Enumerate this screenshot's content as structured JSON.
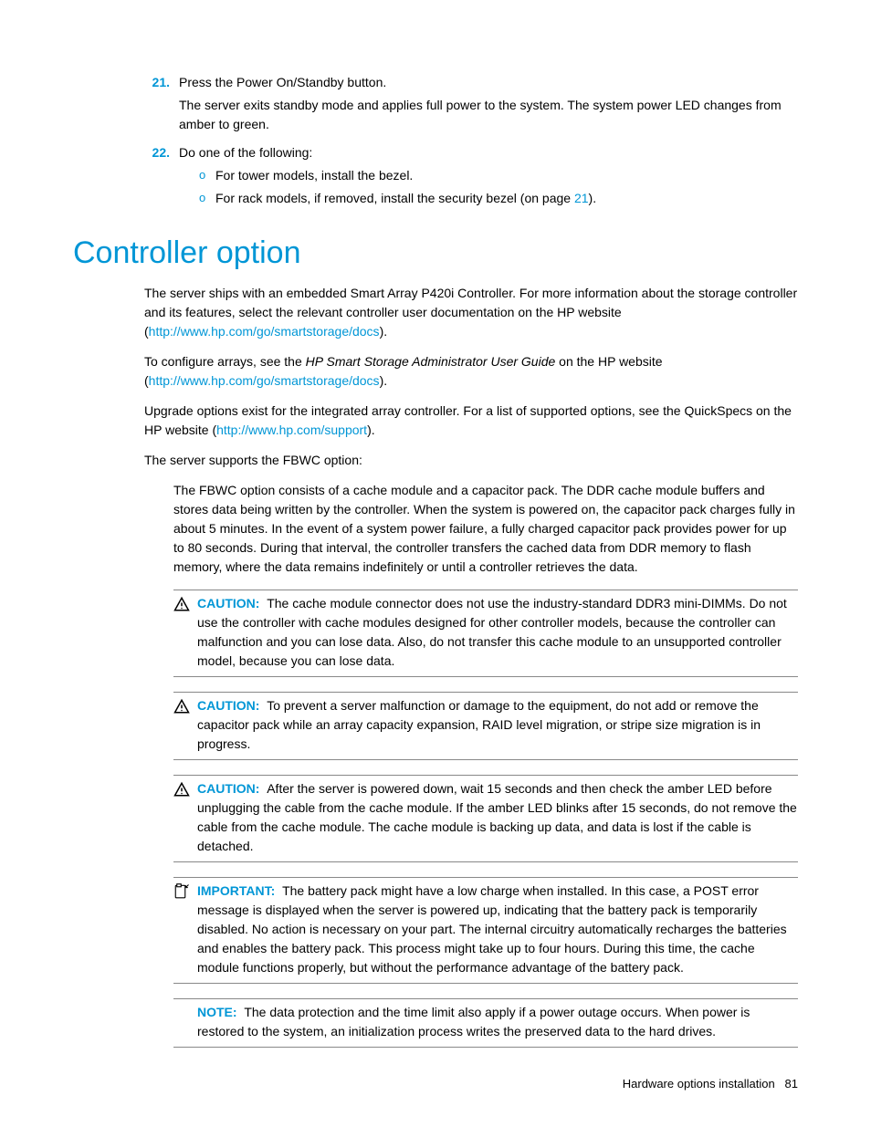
{
  "colors": {
    "accent": "#0096d6",
    "text": "#000000",
    "rule": "#888888",
    "background": "#ffffff"
  },
  "ordered_steps": [
    {
      "num": "21.",
      "lines": [
        "Press the Power On/Standby button.",
        "The server exits standby mode and applies full power to the system. The system power LED changes from amber to green."
      ]
    },
    {
      "num": "22.",
      "lines": [
        "Do one of the following:"
      ],
      "bullets": [
        {
          "text": "For tower models, install the bezel."
        },
        {
          "pre": "For rack models, if removed, install the security bezel (on page ",
          "link": "21",
          "post": ")."
        }
      ]
    }
  ],
  "heading": "Controller option",
  "para1": {
    "pre": "The server ships with an embedded Smart Array P420i Controller. For more information about the storage controller and its features, select the relevant controller user documentation on the HP website (",
    "link": "http://www.hp.com/go/smartstorage/docs",
    "post": ")."
  },
  "para2": {
    "pre1": "To configure arrays, see the ",
    "italic": "HP Smart Storage Administrator User Guide",
    "pre2": " on the HP website (",
    "link": "http://www.hp.com/go/smartstorage/docs",
    "post": ")."
  },
  "para3": {
    "pre": "Upgrade options exist for the integrated array controller. For a list of supported options, see the QuickSpecs on the HP website (",
    "link": "http://www.hp.com/support",
    "post": ")."
  },
  "para4": "The server supports the FBWC option:",
  "fbwc_detail": "The FBWC option consists of a cache module and a capacitor pack. The DDR cache module buffers and stores data being written by the controller. When the system is powered on, the capacitor pack charges fully in about 5 minutes. In the event of a system power failure, a fully charged capacitor pack provides power for up to 80 seconds. During that interval, the controller transfers the cached data from DDR memory to flash memory, where the data remains indefinitely or until a controller retrieves the data.",
  "admonitions": [
    {
      "icon": "caution",
      "label": "CAUTION:",
      "text": "The cache module connector does not use the industry-standard DDR3 mini-DIMMs. Do not use the controller with cache modules designed for other controller models, because the controller can malfunction and you can lose data. Also, do not transfer this cache module to an unsupported controller model, because you can lose data."
    },
    {
      "icon": "caution",
      "label": "CAUTION:",
      "text": "To prevent a server malfunction or damage to the equipment, do not add or remove the capacitor pack while an array capacity expansion, RAID level migration, or stripe size migration is in progress."
    },
    {
      "icon": "caution",
      "label": "CAUTION:",
      "text": "After the server is powered down, wait 15 seconds and then check the amber LED before unplugging the cable from the cache module. If the amber LED blinks after 15 seconds, do not remove the cable from the cache module. The cache module is backing up data, and data is lost if the cable is detached."
    },
    {
      "icon": "important",
      "label": "IMPORTANT:",
      "text": "The battery pack might have a low charge when installed. In this case, a POST error message is displayed when the server is powered up, indicating that the battery pack is temporarily disabled. No action is necessary on your part. The internal circuitry automatically recharges the batteries and enables the battery pack. This process might take up to four hours. During this time, the cache module functions properly, but without the performance advantage of the battery pack."
    },
    {
      "icon": "none",
      "label": "NOTE:",
      "text": "The data protection and the time limit also apply if a power outage occurs. When power is restored to the system, an initialization process writes the preserved data to the hard drives."
    }
  ],
  "footer": {
    "section": "Hardware options installation",
    "page": "81"
  }
}
